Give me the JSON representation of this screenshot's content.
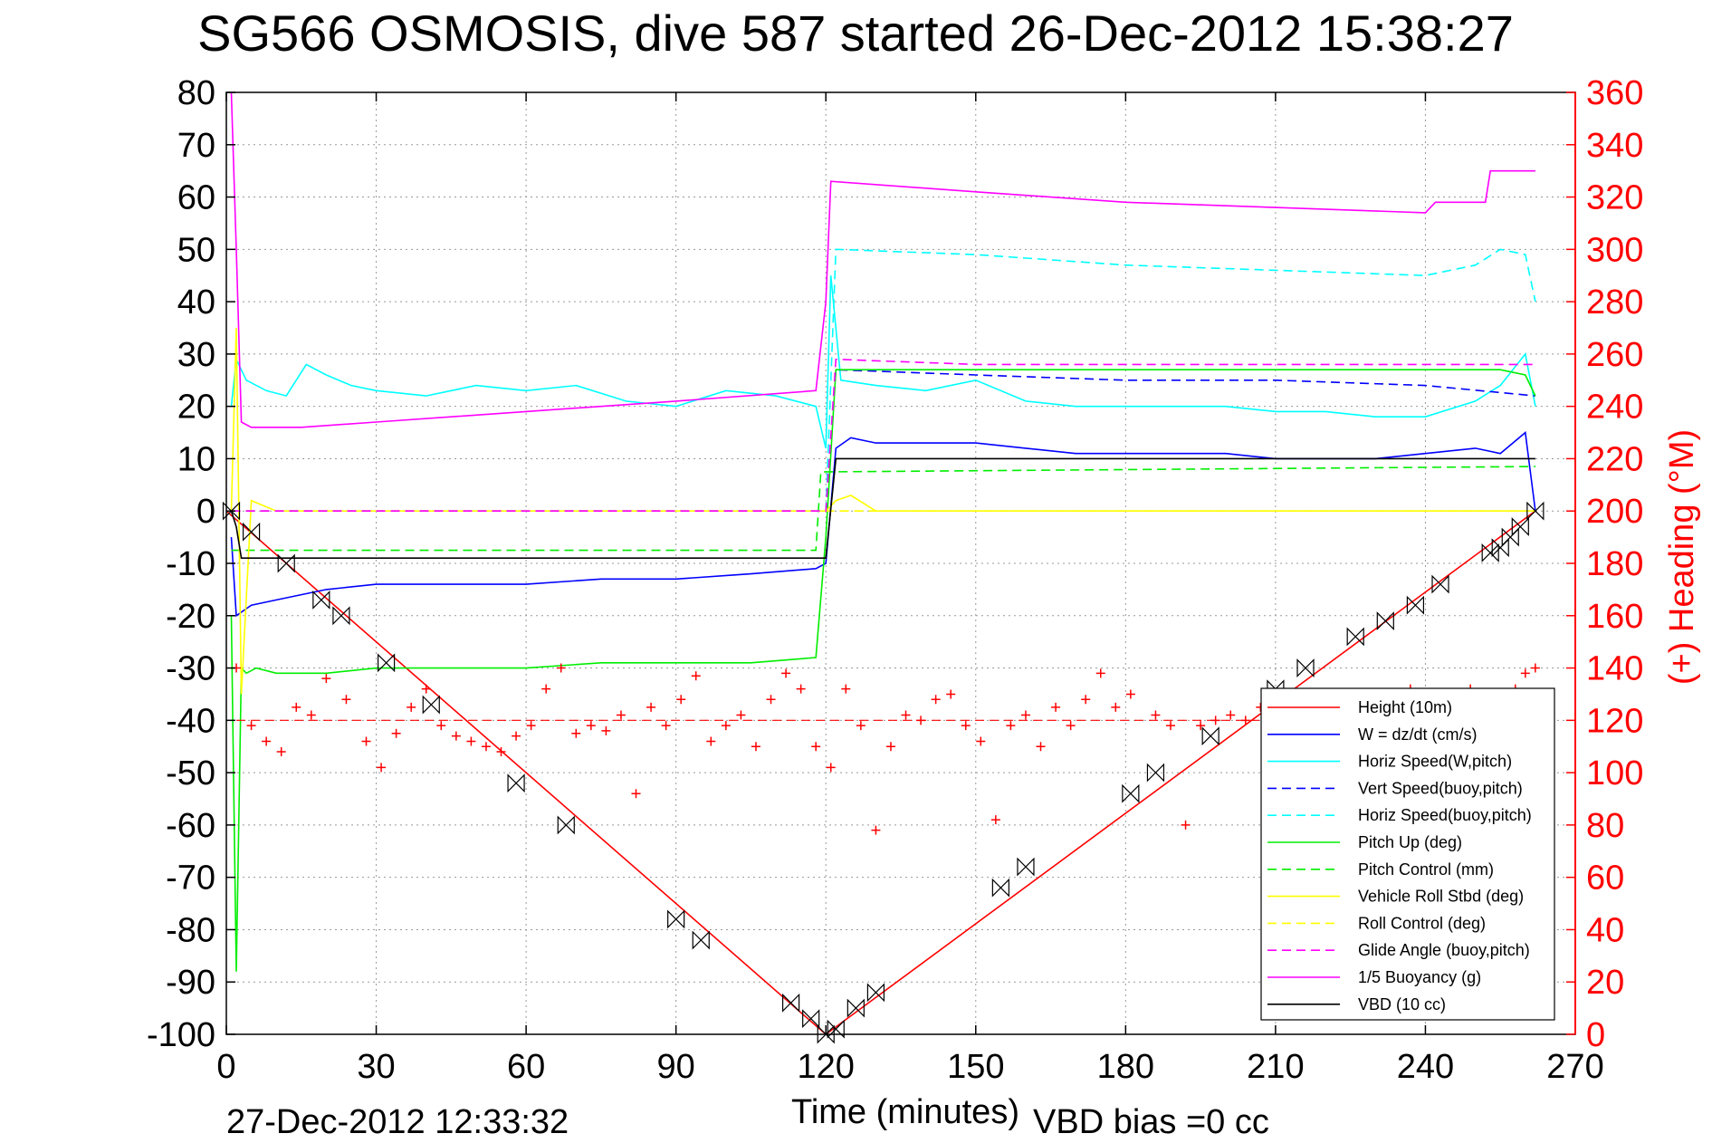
{
  "chart_data": {
    "type": "line",
    "title": "SG566 OSMOSIS, dive 587 started 26-Dec-2012 15:38:27",
    "xlabel": "Time (minutes)",
    "ylabel_right": "(+) Heading (°M)",
    "xlim": [
      0,
      270
    ],
    "ylim": [
      -100,
      80
    ],
    "ylim_right": [
      0,
      360
    ],
    "grid": true,
    "legend_position": "bottom-right",
    "x_ticks": [
      "0",
      "30",
      "60",
      "90",
      "120",
      "150",
      "180",
      "210",
      "240",
      "270"
    ],
    "y_ticks": [
      "80",
      "70",
      "60",
      "50",
      "40",
      "30",
      "20",
      "10",
      "0",
      "-10",
      "-20",
      "-30",
      "-40",
      "-50",
      "-60",
      "-70",
      "-80",
      "-90",
      "-100"
    ],
    "y_right_ticks": [
      "360",
      "340",
      "320",
      "300",
      "280",
      "260",
      "240",
      "220",
      "200",
      "180",
      "160",
      "140",
      "120",
      "100",
      "80",
      "60",
      "40",
      "20",
      "0"
    ],
    "footer_left": "27-Dec-2012 12:33:32",
    "footer_right": "VBD bias =0 cc",
    "legend": [
      {
        "label": "Height (10m)",
        "color": "#ff0000",
        "style": "solid"
      },
      {
        "label": "W = dz/dt (cm/s)",
        "color": "#0000ff",
        "style": "solid"
      },
      {
        "label": "Horiz Speed(W,pitch)",
        "color": "#00ffff",
        "style": "solid"
      },
      {
        "label": "Vert Speed(buoy,pitch)",
        "color": "#0000ff",
        "style": "dashed"
      },
      {
        "label": "Horiz Speed(buoy,pitch)",
        "color": "#00ffff",
        "style": "dashed"
      },
      {
        "label": "Pitch Up (deg)",
        "color": "#00ee00",
        "style": "solid"
      },
      {
        "label": "Pitch Control (mm)",
        "color": "#00ee00",
        "style": "dashed"
      },
      {
        "label": "Vehicle Roll Stbd (deg)",
        "color": "#ffff00",
        "style": "solid"
      },
      {
        "label": "Roll Control (deg)",
        "color": "#ffff00",
        "style": "dashed"
      },
      {
        "label": "Glide Angle (buoy,pitch)",
        "color": "#ff00ff",
        "style": "dashed"
      },
      {
        "label": "1/5 Buoyancy (g)",
        "color": "#ff00ff",
        "style": "solid"
      },
      {
        "label": "VBD (10 cc)",
        "color": "#000000",
        "style": "solid"
      }
    ],
    "series": [
      {
        "name": "Height (10m)",
        "color": "#ff0000",
        "dash": "",
        "x": [
          0,
          120,
          262
        ],
        "y": [
          0,
          -100,
          0
        ]
      },
      {
        "name": "W = dz/dt (cm/s)",
        "color": "#0000ff",
        "dash": "",
        "x": [
          1,
          2,
          5,
          10,
          20,
          30,
          45,
          60,
          75,
          90,
          105,
          118,
          120,
          122,
          125,
          130,
          140,
          150,
          160,
          170,
          180,
          190,
          200,
          210,
          220,
          230,
          240,
          250,
          255,
          260,
          262
        ],
        "y": [
          -5,
          -20,
          -18,
          -17,
          -15,
          -14,
          -14,
          -14,
          -13,
          -13,
          -12,
          -11,
          -10,
          12,
          14,
          13,
          13,
          13,
          12,
          11,
          11,
          11,
          11,
          10,
          10,
          10,
          11,
          12,
          11,
          15,
          0
        ]
      },
      {
        "name": "Horiz Speed(W,pitch)",
        "color": "#00ffff",
        "dash": "",
        "x": [
          1,
          2,
          4,
          8,
          12,
          16,
          20,
          25,
          30,
          40,
          50,
          60,
          70,
          80,
          90,
          100,
          110,
          118,
          120,
          121,
          123,
          130,
          140,
          150,
          160,
          170,
          180,
          190,
          200,
          210,
          220,
          230,
          240,
          250,
          255,
          260,
          262
        ],
        "y": [
          20,
          29,
          25,
          23,
          22,
          28,
          26,
          24,
          23,
          22,
          24,
          23,
          24,
          21,
          20,
          23,
          22,
          20,
          12,
          45,
          25,
          24,
          23,
          25,
          21,
          20,
          20,
          20,
          20,
          19,
          19,
          18,
          18,
          21,
          24,
          30,
          20
        ]
      },
      {
        "name": "Vert Speed(buoy,pitch)",
        "color": "#0000ff",
        "dash": "10,6",
        "x": [
          1,
          118,
          120,
          122,
          150,
          180,
          210,
          240,
          262
        ],
        "y": [
          0,
          0,
          0,
          27,
          26,
          25,
          25,
          24,
          22
        ]
      },
      {
        "name": "Horiz Speed(buoy,pitch)",
        "color": "#00ffff",
        "dash": "10,6",
        "x": [
          120,
          122,
          150,
          180,
          210,
          240,
          250,
          255,
          260,
          262
        ],
        "y": [
          0,
          50,
          49,
          47,
          46,
          45,
          47,
          50,
          49,
          40
        ]
      },
      {
        "name": "Pitch Up (deg)",
        "color": "#00ee00",
        "dash": "",
        "x": [
          1,
          2,
          3,
          4,
          6,
          10,
          20,
          30,
          45,
          60,
          75,
          90,
          105,
          118,
          120,
          122,
          130,
          150,
          180,
          210,
          240,
          255,
          260,
          262
        ],
        "y": [
          -20,
          -88,
          -30,
          -31,
          -30,
          -31,
          -31,
          -30,
          -30,
          -30,
          -29,
          -29,
          -29,
          -28,
          -5,
          27,
          27,
          27,
          27,
          27,
          27,
          27,
          26,
          22
        ]
      },
      {
        "name": "Pitch Control (mm)",
        "color": "#00ee00",
        "dash": "10,6",
        "x": [
          1,
          118,
          119,
          122,
          262
        ],
        "y": [
          -7.5,
          -7.5,
          7.5,
          7.5,
          8.5
        ]
      },
      {
        "name": "Vehicle Roll Stbd (deg)",
        "color": "#ffff00",
        "dash": "",
        "x": [
          1,
          2,
          3,
          5,
          10,
          20,
          40,
          60,
          80,
          100,
          118,
          120,
          122,
          125,
          130,
          150,
          180,
          210,
          240,
          255,
          262
        ],
        "y": [
          0,
          35,
          -35,
          2,
          0,
          0,
          0,
          0,
          0,
          0,
          0,
          0,
          2,
          3,
          0,
          0,
          0,
          0,
          0,
          0,
          0
        ]
      },
      {
        "name": "Roll Control (deg)",
        "color": "#ffff00",
        "dash": "10,6",
        "x": [
          1,
          262
        ],
        "y": [
          0,
          0
        ]
      },
      {
        "name": "Glide Angle (buoy,pitch)",
        "color": "#ff00ff",
        "dash": "10,6",
        "x": [
          1,
          118,
          120,
          122,
          150,
          180,
          210,
          240,
          262
        ],
        "y": [
          0,
          0,
          0,
          29,
          28,
          28,
          28,
          28,
          28
        ]
      },
      {
        "name": "1/5 Buoyancy (g)",
        "color": "#ff00ff",
        "dash": "",
        "x": [
          1,
          2,
          3,
          5,
          15,
          30,
          60,
          90,
          118,
          120,
          121,
          150,
          180,
          210,
          240,
          242,
          252,
          253,
          262
        ],
        "y": [
          80,
          50,
          17,
          16,
          16,
          17,
          19,
          21,
          23,
          40,
          63,
          61,
          59,
          58,
          57,
          59,
          59,
          65,
          65
        ]
      },
      {
        "name": "VBD (10 cc)",
        "color": "#000000",
        "dash": "",
        "x": [
          1,
          2,
          3,
          118,
          120,
          122,
          262
        ],
        "y": [
          0,
          -3,
          -9,
          -9,
          -9,
          10,
          10
        ]
      }
    ],
    "heading_data": {
      "name": "Heading",
      "color": "#ff0000",
      "marker": "+",
      "target_heading": 120,
      "x": [
        2,
        5,
        8,
        11,
        14,
        17,
        20,
        24,
        28,
        31,
        34,
        37,
        40,
        43,
        46,
        49,
        52,
        55,
        58,
        61,
        64,
        67,
        70,
        73,
        76,
        79,
        82,
        85,
        88,
        91,
        94,
        97,
        100,
        103,
        106,
        109,
        112,
        115,
        118,
        121,
        124,
        127,
        130,
        133,
        136,
        139,
        142,
        145,
        148,
        151,
        154,
        157,
        160,
        163,
        166,
        169,
        172,
        175,
        178,
        181,
        186,
        189,
        192,
        195,
        198,
        201,
        204,
        207,
        210,
        213,
        216,
        219,
        222,
        225,
        228,
        231,
        234,
        237,
        240,
        243,
        246,
        249,
        252,
        255,
        258,
        260,
        262
      ],
      "y": [
        140,
        118,
        112,
        108,
        125,
        122,
        136,
        128,
        112,
        102,
        115,
        125,
        132,
        118,
        114,
        112,
        110,
        108,
        114,
        118,
        132,
        140,
        115,
        118,
        116,
        122,
        92,
        125,
        118,
        128,
        137,
        112,
        118,
        122,
        110,
        128,
        138,
        132,
        110,
        102,
        132,
        118,
        78,
        110,
        122,
        120,
        128,
        130,
        118,
        112,
        82,
        118,
        122,
        110,
        125,
        118,
        128,
        138,
        125,
        130,
        122,
        118,
        80,
        118,
        120,
        122,
        120,
        125,
        100,
        112,
        125,
        115,
        118,
        110,
        118,
        112,
        118,
        132,
        118,
        110,
        120,
        132,
        128,
        120,
        132,
        138,
        140
      ]
    },
    "markers": {
      "name": "VBD apogee markers",
      "color": "#000000",
      "x": [
        1,
        5,
        12,
        19,
        23,
        32,
        41,
        58,
        68,
        90,
        95,
        113,
        117,
        120,
        122,
        126,
        130,
        155,
        160,
        181,
        186,
        197,
        210,
        216,
        226,
        232,
        238,
        243,
        253,
        255,
        257,
        259,
        262
      ],
      "y": [
        0,
        -4,
        -10,
        -17,
        -20,
        -29,
        -37,
        -52,
        -60,
        -78,
        -82,
        -94,
        -97,
        -100,
        -99,
        -95,
        -92,
        -72,
        -68,
        -54,
        -50,
        -43,
        -34,
        -30,
        -24,
        -21,
        -18,
        -14,
        -8,
        -7,
        -5,
        -3,
        0
      ]
    }
  }
}
